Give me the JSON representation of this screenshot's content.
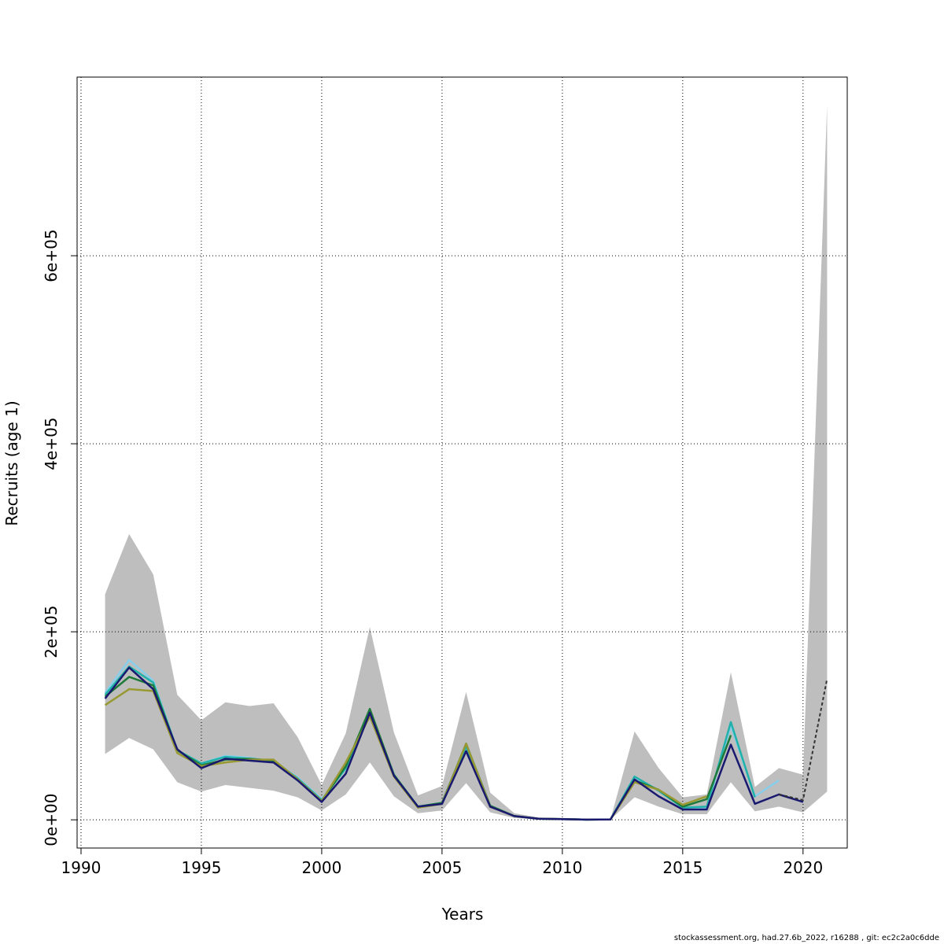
{
  "chart_data": {
    "type": "line",
    "xlabel": "Years",
    "ylabel": "Recruits (age 1)",
    "xlim": [
      1990,
      2022
    ],
    "ylim": [
      -30000,
      790000
    ],
    "xticks": [
      1990,
      1995,
      2000,
      2005,
      2010,
      2015,
      2020
    ],
    "yticks": [
      0,
      200000,
      400000,
      600000
    ],
    "ytick_labels": [
      "0e+00",
      "2e+05",
      "4e+05",
      "6e+05"
    ],
    "grid": true,
    "band": {
      "color": "#bebebe",
      "x": [
        1991,
        1992,
        1993,
        1994,
        1995,
        1996,
        1997,
        1998,
        1999,
        2000,
        2001,
        2002,
        2003,
        2004,
        2005,
        2006,
        2007,
        2008,
        2009,
        2010,
        2011,
        2012,
        2013,
        2014,
        2015,
        2016,
        2017,
        2018,
        2019,
        2020,
        2021
      ],
      "lower": [
        70000,
        87000,
        75000,
        40000,
        30000,
        37000,
        34000,
        31000,
        24000,
        10000,
        27000,
        61000,
        25000,
        7000,
        10000,
        39000,
        8000,
        2000,
        500,
        300,
        100,
        200,
        24000,
        14000,
        6000,
        6000,
        40000,
        9000,
        14000,
        8000,
        30000
      ],
      "upper": [
        240000,
        304000,
        261000,
        133000,
        106000,
        125000,
        121000,
        124000,
        88000,
        37000,
        92000,
        205000,
        93000,
        26000,
        36000,
        136000,
        29000,
        7000,
        2500,
        1200,
        500,
        600,
        94000,
        55000,
        24000,
        27000,
        157000,
        35000,
        55000,
        48000,
        760000
      ]
    },
    "series": [
      {
        "color": "#87ceeb",
        "x": [
          1991,
          1992,
          1993,
          1994,
          1995,
          1996,
          1997,
          1998,
          1999,
          2000,
          2001,
          2002,
          2003,
          2004,
          2005,
          2006,
          2007,
          2008,
          2009,
          2010,
          2011,
          2012,
          2013,
          2014,
          2015,
          2016,
          2017,
          2018,
          2019
        ],
        "values": [
          135000,
          170000,
          148000,
          74000,
          60000,
          68000,
          66000,
          62000,
          45000,
          22000,
          54000,
          114000,
          48000,
          14000,
          18000,
          76000,
          15000,
          4000,
          1200,
          700,
          200,
          400,
          45000,
          31000,
          13000,
          13000,
          100000,
          25000,
          42000
        ]
      },
      {
        "color": "#20b2aa",
        "x": [
          1991,
          1992,
          1993,
          1994,
          1995,
          1996,
          1997,
          1998,
          1999,
          2000,
          2001,
          2002,
          2003,
          2004,
          2005,
          2006,
          2007,
          2008,
          2009,
          2010,
          2011,
          2012,
          2013,
          2014,
          2015,
          2016,
          2017,
          2018
        ],
        "values": [
          133000,
          163000,
          146000,
          74000,
          60000,
          67000,
          65000,
          63000,
          44000,
          21000,
          55000,
          116000,
          48000,
          14000,
          18000,
          78000,
          15000,
          4000,
          1200,
          700,
          200,
          400,
          46000,
          31000,
          13000,
          14000,
          104000,
          24000
        ]
      },
      {
        "color": "#1f7a3a",
        "x": [
          1991,
          1992,
          1993,
          1994,
          1995,
          1996,
          1997,
          1998,
          1999,
          2000,
          2001,
          2002,
          2003,
          2004,
          2005,
          2006,
          2007,
          2008,
          2009,
          2010,
          2011,
          2012,
          2013,
          2014,
          2015,
          2016,
          2017
        ],
        "values": [
          131000,
          152000,
          143000,
          74000,
          58000,
          64000,
          65000,
          63000,
          43000,
          20000,
          57000,
          118000,
          48000,
          14000,
          18000,
          81000,
          15000,
          4000,
          1200,
          700,
          200,
          400,
          42000,
          32000,
          14000,
          22000,
          90000
        ]
      },
      {
        "color": "#999933",
        "x": [
          1991,
          1992,
          1993,
          1994,
          1995,
          1996,
          1997,
          1998,
          1999,
          2000,
          2001,
          2002,
          2003,
          2004,
          2005,
          2006,
          2007,
          2008,
          2009,
          2010,
          2011,
          2012,
          2013,
          2014,
          2015,
          2016
        ],
        "values": [
          122000,
          139000,
          137000,
          71000,
          57000,
          61000,
          64000,
          64000,
          43000,
          20000,
          61000,
          110000,
          46000,
          13000,
          17000,
          81000,
          14000,
          4000,
          1200,
          700,
          200,
          400,
          40000,
          32000,
          16000,
          25000
        ]
      },
      {
        "color": "#191970",
        "x": [
          1991,
          1992,
          1993,
          1994,
          1995,
          1996,
          1997,
          1998,
          1999,
          2000,
          2001,
          2002,
          2003,
          2004,
          2005,
          2006,
          2007,
          2008,
          2009,
          2010,
          2011,
          2012,
          2013,
          2014,
          2015,
          2016,
          2017,
          2018,
          2019,
          2020
        ],
        "values": [
          129000,
          162000,
          139000,
          75000,
          55000,
          65000,
          63000,
          61000,
          42000,
          19000,
          49000,
          114000,
          47000,
          14000,
          17000,
          73000,
          14000,
          4000,
          1200,
          700,
          200,
          400,
          43000,
          25000,
          11000,
          11000,
          80000,
          17000,
          27000,
          19000
        ]
      },
      {
        "color": "#333333",
        "dashed": true,
        "x": [
          2019,
          2020,
          2021
        ],
        "values": [
          27000,
          21000,
          150000
        ]
      }
    ]
  },
  "footer": "stockassessment.org, had.27.6b_2022, r16288 , git: ec2c2a0c6dde"
}
